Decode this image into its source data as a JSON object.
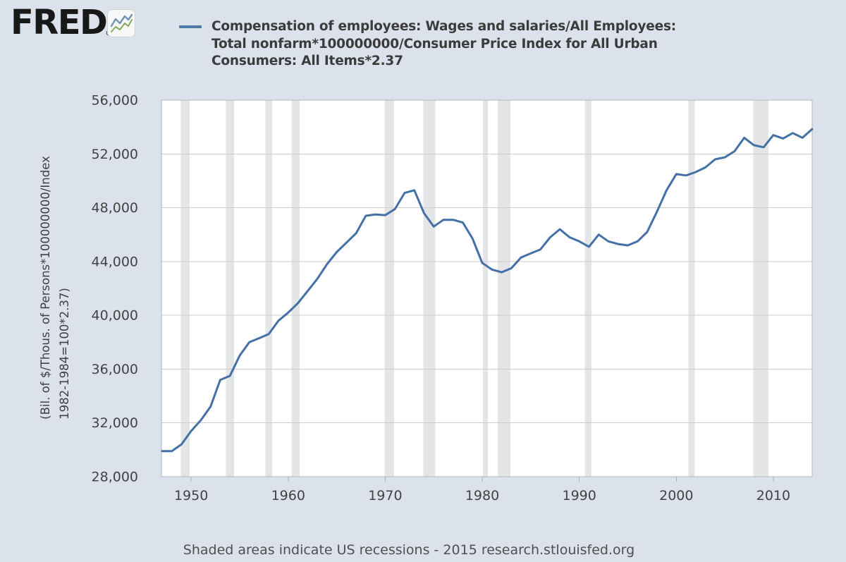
{
  "header": {
    "logo_text": "FRED",
    "logo_registered": "®",
    "logo_icon": "line-chart-icon",
    "title": "Compensation of employees: Wages and salaries/All Employees:\nTotal nonfarm*100000000/Consumer Price Index for All Urban\nConsumers: All Items*2.37"
  },
  "footer": {
    "note": "Shaded areas indicate US recessions - 2015 research.stlouisfed.org"
  },
  "colors": {
    "background": "#dce2ec",
    "plot_background": "#ffffff",
    "grid": "#cdcdcd",
    "plot_border": "#b2b6bc",
    "recession_band": "#e4e5e6",
    "line": "#4471a5",
    "legend_dash": "#4d7aa9",
    "tick": "#a3b1c2",
    "tick_label": "#424242",
    "logo_icon_blue": "#6f94b5",
    "logo_icon_green": "#86a95c"
  },
  "chart_data": {
    "type": "line",
    "title": "Compensation of employees: Wages and salaries/All Employees: Total nonfarm*100000000/Consumer Price Index for All Urban Consumers: All Items*2.37",
    "xlabel": "",
    "ylabel": "(Bil. of $/Thous. of Persons*100000000/Index\n1982-1984=100*2.37)",
    "legend_position": "top",
    "grid": "horizontal",
    "x_range": [
      1946.94,
      2014.0
    ],
    "y_range": [
      28000,
      56000
    ],
    "x_ticks": [
      1950,
      1960,
      1970,
      1980,
      1990,
      2000,
      2010
    ],
    "y_ticks": [
      {
        "value": 28000,
        "label": "28,000"
      },
      {
        "value": 32000,
        "label": "32,000"
      },
      {
        "value": 36000,
        "label": "36,000"
      },
      {
        "value": 40000,
        "label": "40,000"
      },
      {
        "value": 44000,
        "label": "44,000"
      },
      {
        "value": 48000,
        "label": "48,000"
      },
      {
        "value": 52000,
        "label": "52,000"
      },
      {
        "value": 56000,
        "label": "56,000"
      }
    ],
    "recessions": [
      [
        1948.92,
        1949.83
      ],
      [
        1953.58,
        1954.42
      ],
      [
        1957.67,
        1958.33
      ],
      [
        1960.33,
        1961.17
      ],
      [
        1969.92,
        1970.92
      ],
      [
        1973.92,
        1975.17
      ],
      [
        1980.08,
        1980.58
      ],
      [
        1981.58,
        1982.92
      ],
      [
        1990.58,
        1991.25
      ],
      [
        2001.25,
        2001.92
      ],
      [
        2007.92,
        2009.5
      ]
    ],
    "recession_note": "Shaded areas indicate US recessions",
    "series": [
      {
        "name": "Compensation of employees: Wages and salaries/All Employees: Total nonfarm*100000000/Consumer Price Index for All Urban Consumers: All Items*2.37",
        "color": "#4471a5",
        "x": [
          1947,
          1948,
          1949,
          1950,
          1951,
          1952,
          1953,
          1954,
          1955,
          1956,
          1957,
          1958,
          1959,
          1960,
          1961,
          1962,
          1963,
          1964,
          1965,
          1966,
          1967,
          1968,
          1969,
          1970,
          1971,
          1972,
          1973,
          1974,
          1975,
          1976,
          1977,
          1978,
          1979,
          1980,
          1981,
          1982,
          1983,
          1984,
          1985,
          1986,
          1987,
          1988,
          1989,
          1990,
          1991,
          1992,
          1993,
          1994,
          1995,
          1996,
          1997,
          1998,
          1999,
          2000,
          2001,
          2002,
          2003,
          2004,
          2005,
          2006,
          2007,
          2008,
          2009,
          2010,
          2011,
          2012,
          2013,
          2014
        ],
        "values": [
          29900,
          29900,
          30400,
          31400,
          32200,
          33200,
          35200,
          35500,
          37000,
          38000,
          38300,
          38600,
          39600,
          40200,
          40900,
          41800,
          42700,
          43800,
          44700,
          45400,
          46100,
          47400,
          47500,
          47450,
          47900,
          49100,
          49300,
          47600,
          46600,
          47100,
          47100,
          46900,
          45700,
          43900,
          43400,
          43200,
          43500,
          44300,
          44600,
          44900,
          45800,
          46400,
          45800,
          45500,
          45100,
          46000,
          45500,
          45300,
          45200,
          45500,
          46200,
          47700,
          49300,
          50500,
          50400,
          50650,
          51000,
          51600,
          51750,
          52200,
          53200,
          52650,
          52500,
          53400,
          53150,
          53550,
          53200,
          53850
        ]
      }
    ]
  }
}
